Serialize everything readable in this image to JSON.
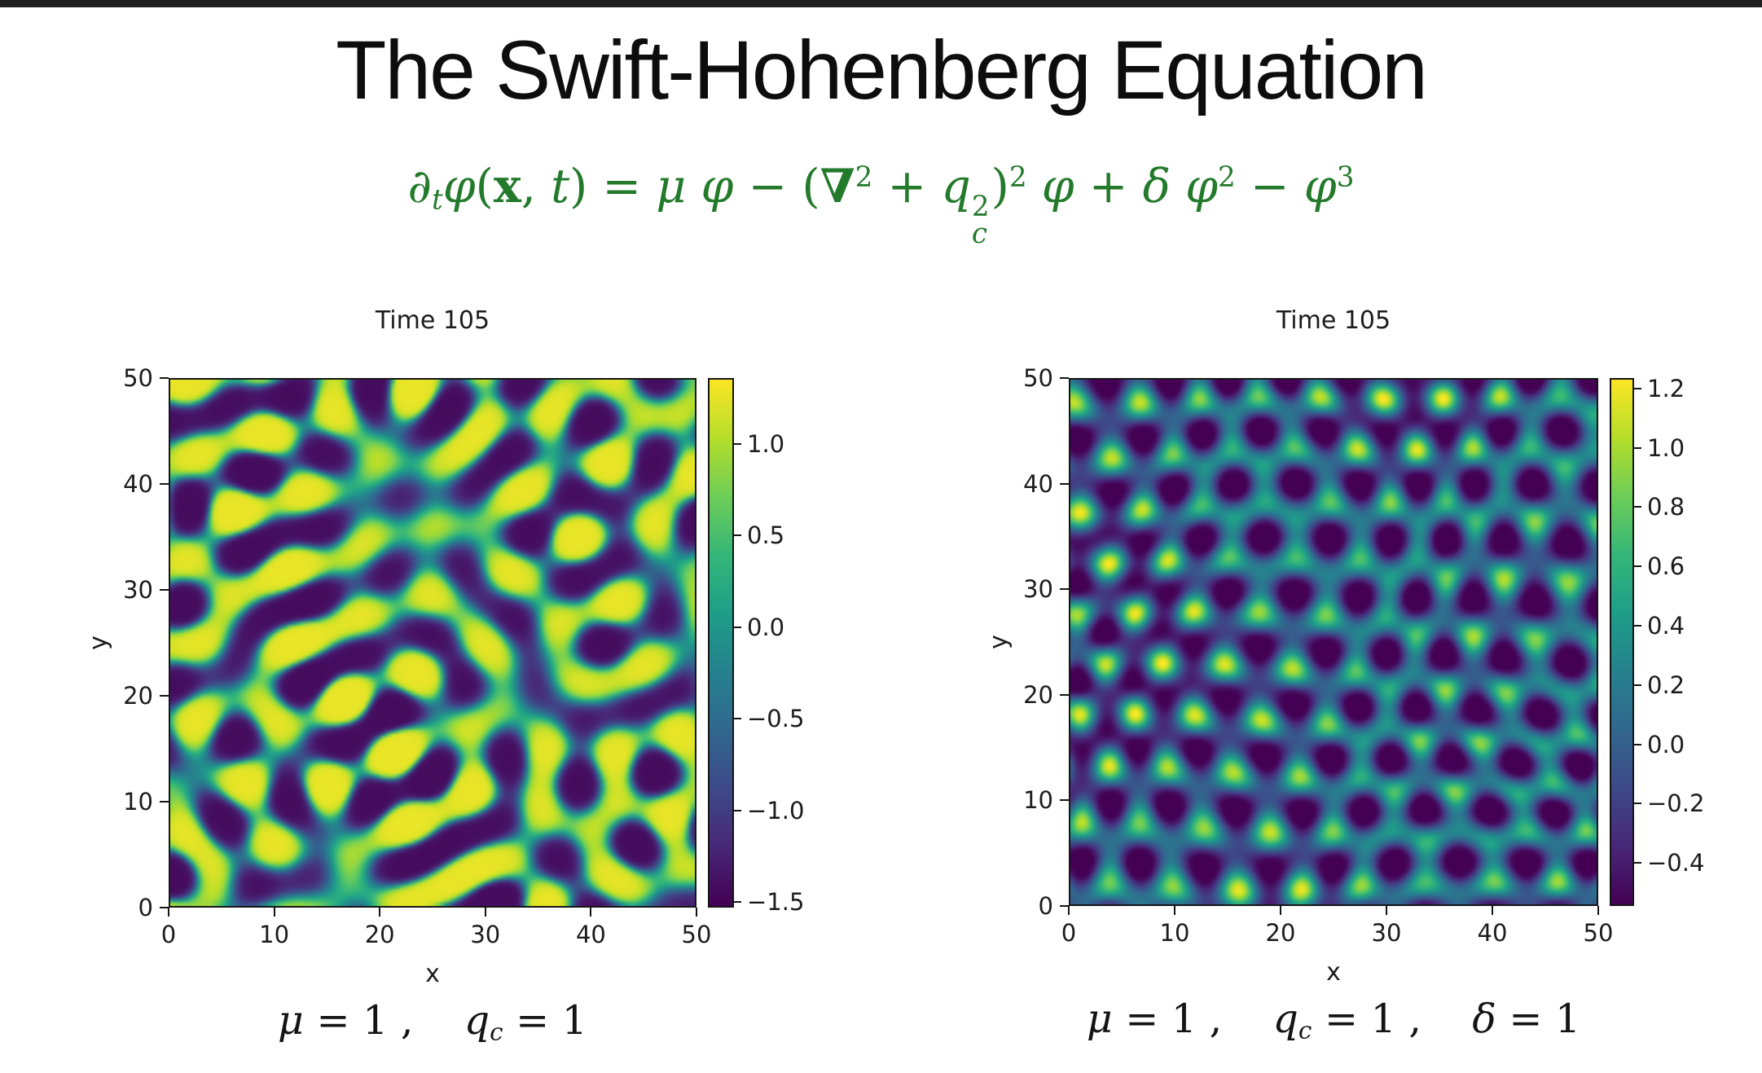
{
  "page": {
    "background": "#ffffff",
    "top_bar_color": "#1f1f1f"
  },
  "title": {
    "text": "The Swift-Hohenberg Equation"
  },
  "equation": {
    "color": "#237a2b",
    "text": "∂ₜφ(x, t) = μ φ − (∇² + q²c)² φ + δ φ² − φ³",
    "segments": [
      {
        "t": "∂",
        "i": true
      },
      {
        "t": "t",
        "i": true,
        "sub": true
      },
      {
        "t": "φ",
        "i": true
      },
      {
        "t": "("
      },
      {
        "t": "x",
        "b": true
      },
      {
        "t": ", "
      },
      {
        "t": "t",
        "i": true
      },
      {
        "t": ") = "
      },
      {
        "t": "μ",
        "i": true
      },
      {
        "t": " "
      },
      {
        "t": "φ",
        "i": true
      },
      {
        "t": " − ("
      },
      {
        "t": "∇",
        "b": true
      },
      {
        "t": "2",
        "sup": true
      },
      {
        "t": " + "
      },
      {
        "t": "q",
        "i": true
      },
      {
        "stack": true,
        "sup": "2",
        "sub": "c"
      },
      {
        "t": ")"
      },
      {
        "t": "2",
        "sup": true
      },
      {
        "t": " "
      },
      {
        "t": "φ",
        "i": true
      },
      {
        "t": " + "
      },
      {
        "t": "δ",
        "i": true
      },
      {
        "t": " "
      },
      {
        "t": "φ",
        "i": true
      },
      {
        "t": "2",
        "sup": true
      },
      {
        "t": " − "
      },
      {
        "t": "φ",
        "i": true
      },
      {
        "t": "3",
        "sup": true
      }
    ]
  },
  "chart_data": [
    {
      "type": "heatmap",
      "title": "Time 105",
      "xlabel": "x",
      "ylabel": "y",
      "x_range": [
        0,
        50
      ],
      "y_range": [
        0,
        50
      ],
      "x_ticks": [
        0,
        10,
        20,
        30,
        40,
        50
      ],
      "y_ticks": [
        0,
        10,
        20,
        30,
        40,
        50
      ],
      "x_tick_labels": [
        "0",
        "10",
        "20",
        "30",
        "40",
        "50"
      ],
      "y_tick_labels": [
        "0",
        "10",
        "20",
        "30",
        "40",
        "50"
      ],
      "colormap": "viridis",
      "value_range": [
        -1.52,
        1.35
      ],
      "colorbar_tick_values": [
        1.0,
        0.5,
        0.0,
        -0.5,
        -1.0,
        -1.5
      ],
      "colorbar_tick_labels": [
        "1.0",
        "0.5",
        "0.0",
        "−0.5",
        "−1.0",
        "−1.5"
      ],
      "pattern": "labyrinthine stripe pattern of the Swift-Hohenberg field φ at time 105",
      "caption_text": "μ = 1 ,   q_c = 1",
      "caption_segments": [
        {
          "t": "μ",
          "i": true
        },
        {
          "t": " = 1 ,"
        },
        {
          "t": "    "
        },
        {
          "t": "q",
          "i": true
        },
        {
          "t": "c",
          "i": true,
          "sub": true
        },
        {
          "t": " = 1"
        }
      ]
    },
    {
      "type": "heatmap",
      "title": "Time 105",
      "xlabel": "x",
      "ylabel": "y",
      "x_range": [
        0,
        50
      ],
      "y_range": [
        0,
        50
      ],
      "x_ticks": [
        0,
        10,
        20,
        30,
        40,
        50
      ],
      "y_ticks": [
        0,
        10,
        20,
        30,
        40,
        50
      ],
      "x_tick_labels": [
        "0",
        "10",
        "20",
        "30",
        "40",
        "50"
      ],
      "y_tick_labels": [
        "0",
        "10",
        "20",
        "30",
        "40",
        "50"
      ],
      "colormap": "viridis",
      "value_range": [
        -0.54,
        1.23
      ],
      "colorbar_tick_values": [
        1.2,
        1.0,
        0.8,
        0.6,
        0.4,
        0.2,
        0.0,
        -0.2,
        -0.4
      ],
      "colorbar_tick_labels": [
        "1.2",
        "1.0",
        "0.8",
        "0.6",
        "0.4",
        "0.2",
        "0.0",
        "−0.2",
        "−0.4"
      ],
      "pattern": "hexagonal spot pattern of the Swift-Hohenberg field φ at time 105",
      "caption_text": "μ = 1 ,   q_c = 1 ,   δ = 1",
      "caption_segments": [
        {
          "t": "μ",
          "i": true
        },
        {
          "t": " = 1 ,"
        },
        {
          "t": "    "
        },
        {
          "t": "q",
          "i": true
        },
        {
          "t": "c",
          "i": true,
          "sub": true
        },
        {
          "t": " = 1 ,"
        },
        {
          "t": "    "
        },
        {
          "t": "δ",
          "i": true
        },
        {
          "t": " = 1"
        }
      ]
    }
  ]
}
